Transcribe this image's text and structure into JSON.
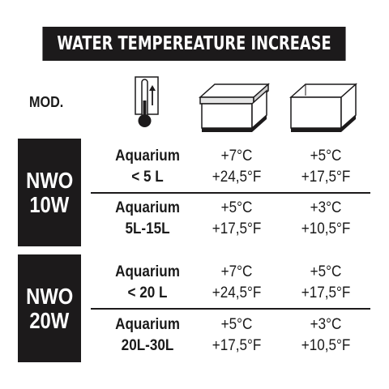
{
  "title": "WATER TEMPEREATURE INCREASE",
  "mod_label": "MOD.",
  "models": [
    {
      "name_line1": "NWO",
      "name_line2": "10W",
      "rows": [
        {
          "aq_line1": "Aquarium",
          "aq_line2": "< 5 L",
          "covered_c": "+7°C",
          "covered_f": "+24,5°F",
          "open_c": "+5°C",
          "open_f": "+17,5°F"
        },
        {
          "aq_line1": "Aquarium",
          "aq_line2": "5L-15L",
          "covered_c": "+5°C",
          "covered_f": "+17,5°F",
          "open_c": "+3°C",
          "open_f": "+10,5°F"
        }
      ]
    },
    {
      "name_line1": "NWO",
      "name_line2": "20W",
      "rows": [
        {
          "aq_line1": "Aquarium",
          "aq_line2": "< 20 L",
          "covered_c": "+7°C",
          "covered_f": "+24,5°F",
          "open_c": "+5°C",
          "open_f": "+17,5°F"
        },
        {
          "aq_line1": "Aquarium",
          "aq_line2": "20L-30L",
          "covered_c": "+5°C",
          "covered_f": "+17,5°F",
          "open_c": "+3°C",
          "open_f": "+10,5°F"
        }
      ]
    }
  ],
  "icons": {
    "temperature": "thermometer-icon",
    "covered": "covered-aquarium-icon",
    "open": "open-aquarium-icon"
  }
}
